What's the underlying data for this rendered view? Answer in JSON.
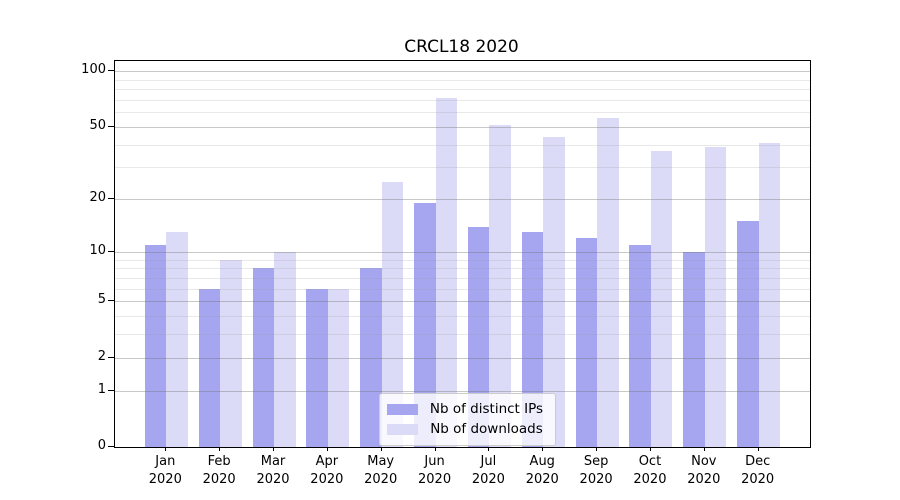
{
  "title": "CRCL18 2020",
  "chart_data": {
    "type": "bar",
    "title": "CRCL18 2020",
    "categories": [
      "Jan 2020",
      "Feb 2020",
      "Mar 2020",
      "Apr 2020",
      "May 2020",
      "Jun 2020",
      "Jul 2020",
      "Aug 2020",
      "Sep 2020",
      "Oct 2020",
      "Nov 2020",
      "Dec 2020"
    ],
    "series": [
      {
        "name": "Nb of distinct IPs",
        "color": "#a6a6f0",
        "values": [
          11,
          6,
          8,
          6,
          8,
          19,
          14,
          13,
          12,
          11,
          10,
          15
        ]
      },
      {
        "name": "Nb of downloads",
        "color": "#dbdbf8",
        "values": [
          13,
          9,
          10,
          6,
          25,
          72,
          51,
          44,
          56,
          37,
          39,
          41
        ]
      }
    ],
    "xlabel": "",
    "ylabel": "",
    "yscale": "log1p",
    "ylim": [
      0,
      114
    ],
    "y_major_ticks": [
      0,
      1,
      2,
      5,
      10,
      20,
      50,
      100
    ],
    "y_minor_gridlines": [
      3,
      4,
      6,
      7,
      8,
      9,
      30,
      40,
      60,
      70,
      80,
      90
    ],
    "grid": true,
    "grid_above_bars": true,
    "legend_position": "lower center"
  },
  "legend": {
    "items": [
      {
        "label": "Nb of distinct IPs",
        "color": "#a6a6f0"
      },
      {
        "label": "Nb of downloads",
        "color": "#dbdbf8"
      }
    ]
  },
  "colors": {
    "bar_distinct_ips": "#a6a6f0",
    "bar_downloads": "#dbdbf8",
    "axis": "#000000",
    "grid_major": "#c9c9c9",
    "grid_minor": "#e8e8e8",
    "legend_border": "#cccccc",
    "background": "#ffffff",
    "text": "#000000"
  }
}
